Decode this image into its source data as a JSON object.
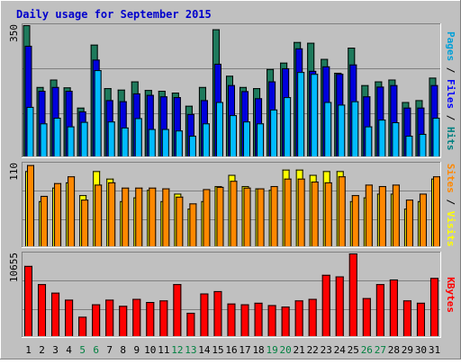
{
  "chart_data": {
    "type": "bar",
    "title": "Daily usage for September 2015",
    "categories": [
      "1",
      "2",
      "3",
      "4",
      "5",
      "6",
      "7",
      "8",
      "9",
      "10",
      "11",
      "12",
      "13",
      "14",
      "15",
      "16",
      "17",
      "18",
      "19",
      "20",
      "21",
      "22",
      "23",
      "24",
      "25",
      "26",
      "27",
      "28",
      "29",
      "30",
      "31"
    ],
    "weekend_days": [
      "5",
      "6",
      "12",
      "13",
      "19",
      "20",
      "26",
      "27"
    ],
    "panels": [
      {
        "id": "top",
        "ymax_label": "350",
        "ylim": [
          0,
          350
        ],
        "right_labels": [
          {
            "text": "Pages",
            "color": "#00a0d8"
          },
          {
            "text": " / ",
            "color": "#000000"
          },
          {
            "text": "Files",
            "color": "#0000ff"
          },
          {
            "text": " / ",
            "color": "#000000"
          },
          {
            "text": "Hits",
            "color": "#008080"
          }
        ],
        "series": [
          {
            "name": "Hits",
            "color": "#1e7a5c",
            "values": [
              350,
              185,
              205,
              184,
              130,
              298,
              182,
              178,
              200,
              177,
              175,
              170,
              135,
              185,
              339,
              215,
              185,
              182,
              233,
              250,
              305,
              303,
              260,
              223,
              290,
              190,
              200,
              205,
              145,
              150,
              210
            ]
          },
          {
            "name": "Files",
            "color": "#0000dd",
            "values": [
              295,
              175,
              185,
              175,
              120,
              258,
              150,
              147,
              168,
              164,
              160,
              158,
              113,
              150,
              247,
              190,
              174,
              155,
              200,
              235,
              288,
              228,
              240,
              220,
              245,
              160,
              186,
              190,
              130,
              130,
              190
            ]
          },
          {
            "name": "Pages",
            "color": "#00bbff",
            "values": [
              132,
              88,
              103,
              80,
              92,
              230,
              93,
              77,
              102,
              73,
              73,
              69,
              55,
              88,
              145,
              110,
              93,
              88,
              125,
              158,
              225,
              220,
              145,
              138,
              147,
              80,
              98,
              91,
              55,
              60,
              103
            ]
          }
        ]
      },
      {
        "id": "middle",
        "ymax_label": "110",
        "ylim": [
          0,
          110
        ],
        "right_labels": [
          {
            "text": "Sites",
            "color": "#ff8800"
          },
          {
            "text": " / ",
            "color": "#000000"
          },
          {
            "text": "Visits",
            "color": "#ffff00"
          }
        ],
        "series": [
          {
            "name": "Visits",
            "color": "#ffff00",
            "values": [
              100,
              60,
              78,
              85,
              68,
              100,
              90,
              60,
              65,
              75,
              60,
              70,
              50,
              60,
              80,
              95,
              80,
              77,
              75,
              102,
              102,
              95,
              100,
              100,
              60,
              65,
              70,
              70,
              50,
              60,
              90
            ]
          },
          {
            "name": "Sites",
            "color": "#ff8800",
            "values": [
              108,
              67,
              84,
              93,
              62,
              82,
              85,
              78,
              78,
              78,
              77,
              66,
              57,
              76,
              79,
              87,
              78,
              77,
              80,
              90,
              90,
              86,
              85,
              93,
              68,
              82,
              80,
              82,
              62,
              70,
              93
            ]
          }
        ]
      },
      {
        "id": "bottom",
        "ymax_label": "10655",
        "ylim": [
          0,
          10655
        ],
        "right_labels": [
          {
            "text": "KBytes",
            "color": "#ff0000"
          }
        ],
        "series": [
          {
            "name": "KBytes",
            "color": "#ff0000",
            "values": [
              9050,
              6700,
              5600,
              4700,
              2500,
              4100,
              4700,
              3900,
              4800,
              4400,
              4600,
              6700,
              3000,
              5500,
              5800,
              4200,
              4100,
              4300,
              4000,
              3800,
              4600,
              4800,
              7900,
              7700,
              10655,
              4900,
              6700,
              7300,
              4600,
              4300,
              7500
            ]
          }
        ]
      }
    ]
  }
}
